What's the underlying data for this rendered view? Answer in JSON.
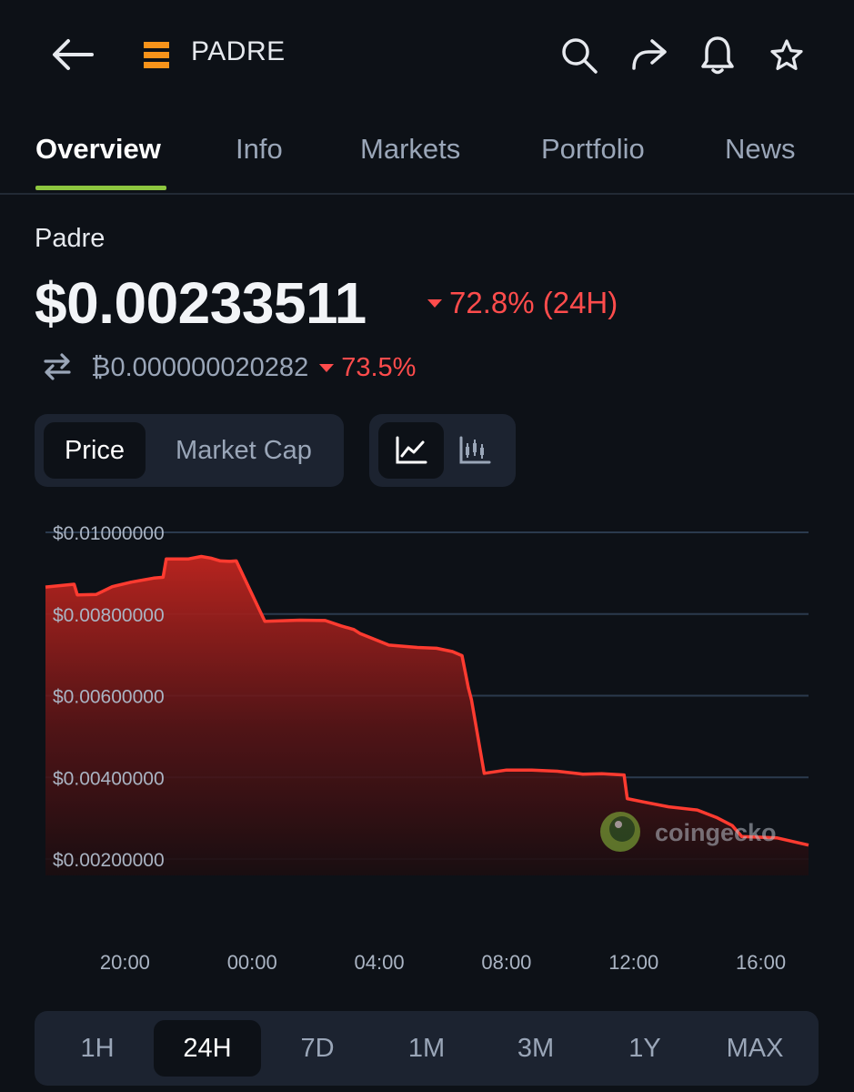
{
  "header": {
    "coin_symbol": "PADRE",
    "icons": [
      "back-arrow-icon",
      "padre-logo-icon",
      "search-icon",
      "share-icon",
      "bell-icon",
      "star-icon"
    ],
    "accent_logo_color": "#f7931a"
  },
  "tabs": [
    {
      "label": "Overview",
      "active": true
    },
    {
      "label": "Info",
      "active": false
    },
    {
      "label": "Markets",
      "active": false
    },
    {
      "label": "Portfolio",
      "active": false
    },
    {
      "label": "News",
      "active": false
    }
  ],
  "coin": {
    "name": "Padre",
    "price": "$0.00233511",
    "change_24h": "72.8% (24H)",
    "btc_price": "₿0.000000020282",
    "btc_change": "73.5%",
    "negative_color": "#ff4c4c"
  },
  "toggles": {
    "metric": [
      "Price",
      "Market Cap"
    ],
    "metric_selected": "Price",
    "chart_styles": [
      "line-chart-icon",
      "candlestick-chart-icon"
    ],
    "chart_style_selected": "line-chart-icon"
  },
  "watermark": "coingecko",
  "chart_data": {
    "type": "area",
    "title": "",
    "xlabel": "",
    "ylabel": "",
    "line_color": "#ff3b30",
    "grid": true,
    "x_tick_labels": [
      "20:00",
      "00:00",
      "04:00",
      "08:00",
      "12:00",
      "16:00"
    ],
    "x_ticks_hours": [
      20,
      24,
      28,
      32,
      36,
      40
    ],
    "y_tick_labels": [
      "$0.01000000",
      "$0.00800000",
      "$0.00600000",
      "$0.00400000",
      "$0.00200000"
    ],
    "y_tick_values": [
      0.01,
      0.008,
      0.006,
      0.004,
      0.002
    ],
    "xlim_hours": [
      17.5,
      41.5
    ],
    "ylim": [
      0.0015,
      0.0105
    ],
    "series": [
      {
        "x_hours": [
          17.5,
          18.4,
          18.5,
          19.1,
          19.6,
          20.2,
          20.9,
          21.2,
          21.3,
          22.0,
          22.4,
          22.7,
          23.0,
          23.3,
          23.5,
          24.4,
          25.5,
          26.3,
          26.8,
          27.2,
          27.4,
          28.3,
          29.2,
          29.8,
          30.3,
          30.6,
          30.8,
          30.9,
          31.3,
          32.0,
          32.8,
          33.6,
          34.4,
          35.0,
          35.7,
          35.8,
          36.3,
          37.1,
          38.0,
          38.6,
          39.1,
          39.4,
          40.5,
          41.5
        ],
        "y_values": [
          0.00866,
          0.00873,
          0.00847,
          0.00848,
          0.00867,
          0.00878,
          0.00888,
          0.0089,
          0.00935,
          0.00935,
          0.00941,
          0.00937,
          0.0093,
          0.00929,
          0.0093,
          0.00782,
          0.00785,
          0.00784,
          0.00771,
          0.00762,
          0.00752,
          0.00724,
          0.00718,
          0.00716,
          0.00708,
          0.00698,
          0.0062,
          0.0059,
          0.0041,
          0.00418,
          0.00418,
          0.00415,
          0.00408,
          0.00409,
          0.00406,
          0.00348,
          0.0034,
          0.00328,
          0.0032,
          0.00302,
          0.00282,
          0.00255,
          0.00252,
          0.00234
        ]
      }
    ]
  },
  "ranges": [
    {
      "label": "1H",
      "selected": false
    },
    {
      "label": "24H",
      "selected": true
    },
    {
      "label": "7D",
      "selected": false
    },
    {
      "label": "1M",
      "selected": false
    },
    {
      "label": "3M",
      "selected": false
    },
    {
      "label": "1Y",
      "selected": false
    },
    {
      "label": "MAX",
      "selected": false
    }
  ]
}
